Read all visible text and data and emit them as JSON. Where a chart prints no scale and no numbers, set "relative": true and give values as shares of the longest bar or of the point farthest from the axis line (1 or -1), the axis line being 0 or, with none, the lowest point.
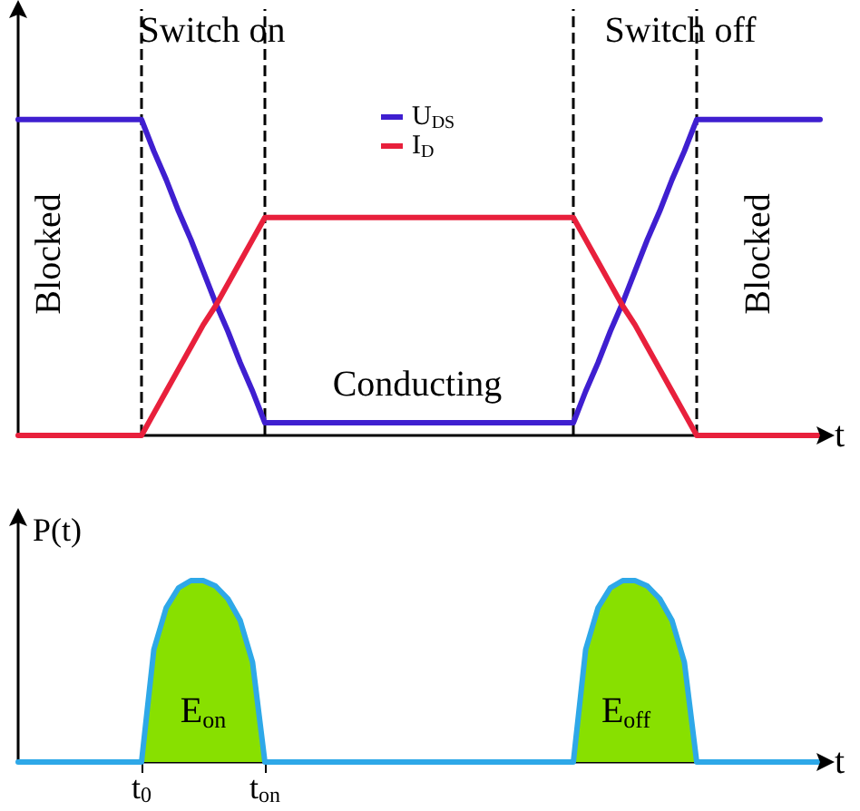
{
  "chart_data": [
    {
      "type": "line",
      "relative": true,
      "xlabel": "t",
      "tick_labels": false,
      "legend": "top",
      "marker": "none",
      "grid": "x",
      "categories": [
        null,
        null,
        null,
        null,
        null,
        null,
        null,
        null,
        null,
        null,
        null,
        null,
        null,
        null,
        null,
        null,
        null,
        null,
        null,
        null,
        null,
        null,
        null,
        null,
        null,
        null,
        null,
        null,
        null,
        null,
        null,
        null,
        null,
        null,
        null,
        null,
        null,
        null,
        null,
        null,
        null,
        null,
        null,
        null,
        null,
        null,
        null,
        null,
        null,
        null,
        null,
        null,
        null,
        null,
        null,
        null,
        null,
        null,
        null,
        null,
        null,
        null,
        null,
        null,
        null,
        null
      ],
      "series": [
        {
          "name": "U$_{DS}$",
          "color": "#3f1fd0",
          "values": [
            1,
            1,
            1,
            1,
            1,
            1,
            1,
            1,
            1,
            1,
            1,
            0.9,
            0.81,
            0.71,
            0.62,
            0.52,
            0.42,
            0.33,
            0.23,
            0.14,
            0.04,
            0.04,
            0.04,
            0.04,
            0.04,
            0.04,
            0.04,
            0.04,
            0.04,
            0.04,
            0.04,
            0.04,
            0.04,
            0.04,
            0.04,
            0.04,
            0.04,
            0.04,
            0.04,
            0.04,
            0.04,
            0.04,
            0.04,
            0.04,
            0.04,
            0.04,
            0.14,
            0.23,
            0.33,
            0.42,
            0.52,
            0.62,
            0.71,
            0.81,
            0.9,
            1,
            1,
            1,
            1,
            1,
            1,
            1,
            1,
            1,
            1,
            1
          ]
        },
        {
          "name": "I$_{D}$",
          "color": "#e8203c",
          "values": [
            0,
            0,
            0,
            0,
            0,
            0,
            0,
            0,
            0,
            0,
            0,
            0.07,
            0.14,
            0.21,
            0.28,
            0.35,
            0.41,
            0.48,
            0.55,
            0.62,
            0.69,
            0.69,
            0.69,
            0.69,
            0.69,
            0.69,
            0.69,
            0.69,
            0.69,
            0.69,
            0.69,
            0.69,
            0.69,
            0.69,
            0.69,
            0.69,
            0.69,
            0.69,
            0.69,
            0.69,
            0.69,
            0.69,
            0.69,
            0.69,
            0.69,
            0.69,
            0.62,
            0.55,
            0.48,
            0.41,
            0.35,
            0.28,
            0.21,
            0.14,
            0.07,
            0,
            0,
            0,
            0,
            0,
            0,
            0,
            0,
            0,
            0,
            0
          ]
        }
      ],
      "annotations": [
        "Blocked",
        "Blocked",
        "Conducting",
        "Switch on",
        "Switch off"
      ]
    },
    {
      "type": "line",
      "relative": true,
      "xlabel": "t",
      "ylabel": "P(t)",
      "tick_labels": "x",
      "marker": "none",
      "grid": false,
      "categories": [
        null,
        null,
        null,
        null,
        null,
        null,
        null,
        null,
        null,
        null,
        "t$_{0}$",
        null,
        null,
        null,
        null,
        null,
        null,
        null,
        null,
        null,
        "t$_{on}$",
        null,
        null,
        null,
        null,
        null,
        null,
        null,
        null,
        null,
        null,
        null,
        null,
        null,
        null,
        null,
        null,
        null,
        null,
        null,
        null,
        null,
        null,
        null,
        null,
        null,
        null,
        null,
        null,
        null,
        null,
        null,
        null,
        null,
        null,
        null,
        null,
        null,
        null,
        null,
        null,
        null,
        null,
        null,
        null,
        null
      ],
      "series": [
        {
          "type": "area",
          "color": "#88e000",
          "values": [
            null,
            null,
            null,
            null,
            null,
            null,
            null,
            null,
            null,
            null,
            0,
            0.62,
            0.85,
            0.96,
            1,
            1,
            0.97,
            0.9,
            0.78,
            0.55,
            0,
            null,
            null,
            null,
            null,
            null,
            null,
            null,
            null,
            null,
            null,
            null,
            null,
            null,
            null,
            null,
            null,
            null,
            null,
            null,
            null,
            null,
            null,
            null,
            null,
            0,
            0.62,
            0.85,
            0.96,
            1,
            1,
            0.97,
            0.9,
            0.78,
            0.55,
            0,
            null,
            null,
            null,
            null,
            null,
            null,
            null,
            null,
            null,
            null
          ]
        },
        {
          "color": "#2ea8e8",
          "values": [
            0,
            0,
            0,
            0,
            0,
            0,
            0,
            0,
            0,
            0,
            0,
            0.62,
            0.85,
            0.96,
            1,
            1,
            0.97,
            0.9,
            0.78,
            0.55,
            0,
            0,
            0,
            0,
            0,
            0,
            0,
            0,
            0,
            0,
            0,
            0,
            0,
            0,
            0,
            0,
            0,
            0,
            0,
            0,
            0,
            0,
            0,
            0,
            0,
            0,
            0.62,
            0.85,
            0.96,
            1,
            1,
            0.97,
            0.9,
            0.78,
            0.55,
            0,
            0,
            0,
            0,
            0,
            0,
            0,
            0,
            0,
            0,
            0
          ]
        }
      ],
      "annotations": [
        "E$_{on}$",
        "E$_{off}$"
      ]
    }
  ]
}
